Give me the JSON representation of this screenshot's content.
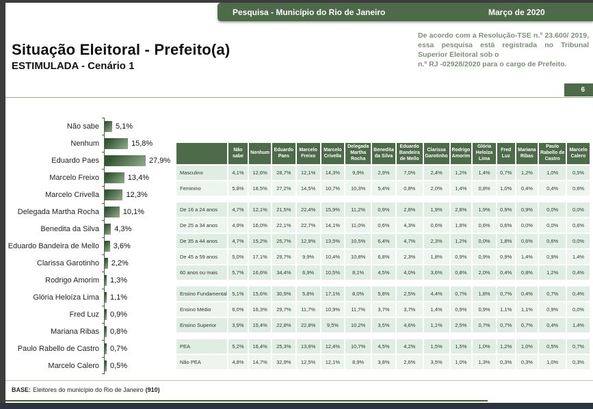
{
  "header": {
    "bar_title": "Pesquisa - Município do Rio de Janeiro",
    "bar_date": "Março de 2020",
    "registration_line1": "De acordo com a Resolução-TSE n.º 23.600/ 2019, essa pesquisa está registrada no Tribunal Superior Eleitoral sob o",
    "registration_line2": "n.º RJ -02928/2020 para o cargo de Prefeito.",
    "page_number": "6"
  },
  "title": {
    "main": "Situação Eleitoral - Prefeito(a)",
    "subtitle": "ESTIMULADA - Cenário 1"
  },
  "chart_data": {
    "type": "bar",
    "orientation": "horizontal",
    "unit": "%",
    "xlim": [
      0,
      30
    ],
    "categories": [
      "Não sabe",
      "Nenhum",
      "Eduardo Paes",
      "Marcelo Freixo",
      "Marcelo Crivella",
      "Delegada Martha Rocha",
      "Benedita da Silva",
      "Eduardo Bandeira de Mello",
      "Clarissa Garotinho",
      "Rodrigo Amorim",
      "Glória Heloíza Lima",
      "Fred Luz",
      "Mariana Ribas",
      "Paulo Rabello de Castro",
      "Marcelo Calero"
    ],
    "values": [
      5.1,
      15.8,
      27.9,
      13.4,
      12.3,
      10.1,
      4.3,
      3.6,
      2.2,
      1.3,
      1.1,
      0.9,
      0.8,
      0.7,
      0.5
    ],
    "value_labels": [
      "5,1%",
      "15,8%",
      "27,9%",
      "13,4%",
      "12,3%",
      "10,1%",
      "4,3%",
      "3,6%",
      "2,2%",
      "1,3%",
      "1,1%",
      "0,9%",
      "0,8%",
      "0,7%",
      "0,5%"
    ]
  },
  "table": {
    "columns": [
      "Não sabe",
      "Nenhum",
      "Eduardo Paes",
      "Marcelo Freixo",
      "Marcelo Crivella",
      "Delegada Martha Rocha",
      "Benedita da Silva",
      "Eduardo Bandeira de Mello",
      "Clarissa Garotinho",
      "Rodrigo Amorim",
      "Glória Heloíza Lima",
      "Fred Luz",
      "Mariana Ribas",
      "Paulo Rabello de Castro",
      "Marcelo Calero"
    ],
    "groups": [
      {
        "rows": [
          {
            "label": "Masculino",
            "values": [
              "4,1%",
              "12,6%",
              "28,7%",
              "12,1%",
              "14,3%",
              "9,9%",
              "2,9%",
              "7,0%",
              "2,4%",
              "1,2%",
              "1,4%",
              "0,7%",
              "1,2%",
              "1,0%",
              "0,5%"
            ]
          },
          {
            "label": "Feminino",
            "values": [
              "5,8%",
              "18,5%",
              "27,2%",
              "14,5%",
              "10,7%",
              "10,3%",
              "5,4%",
              "0,8%",
              "2,0%",
              "1,4%",
              "0,8%",
              "1,0%",
              "0,4%",
              "0,4%",
              "0,6%"
            ]
          }
        ]
      },
      {
        "rows": [
          {
            "label": "De 16 a 24 anos",
            "values": [
              "4,7%",
              "12,1%",
              "21,5%",
              "22,4%",
              "15,9%",
              "11,2%",
              "0,9%",
              "2,8%",
              "1,9%",
              "2,8%",
              "1,9%",
              "0,9%",
              "0,9%",
              "0,0%",
              "0,0%"
            ]
          },
          {
            "label": "De 25 a 34 anos",
            "values": [
              "4,9%",
              "16,0%",
              "22,1%",
              "22,7%",
              "14,1%",
              "11,0%",
              "0,6%",
              "4,3%",
              "0,6%",
              "1,8%",
              "0,6%",
              "0,6%",
              "0,0%",
              "0,0%",
              "0,6%"
            ]
          },
          {
            "label": "De 35 a 44 anos",
            "values": [
              "4,7%",
              "15,2%",
              "25,7%",
              "12,9%",
              "13,5%",
              "10,5%",
              "6,4%",
              "4,7%",
              "2,3%",
              "1,2%",
              "0,0%",
              "1,8%",
              "0,6%",
              "0,6%",
              "0,0%"
            ]
          },
          {
            "label": "De 45 a 59 anos",
            "values": [
              "5,0%",
              "17,1%",
              "29,7%",
              "9,9%",
              "10,4%",
              "10,8%",
              "6,8%",
              "2,3%",
              "1,8%",
              "0,9%",
              "0,9%",
              "0,9%",
              "1,4%",
              "0,9%",
              "1,4%"
            ]
          },
          {
            "label": "60 anos ou mais",
            "values": [
              "5,7%",
              "16,6%",
              "34,4%",
              "6,9%",
              "10,5%",
              "8,1%",
              "4,5%",
              "4,0%",
              "3,6%",
              "0,8%",
              "2,0%",
              "0,4%",
              "0,8%",
              "1,2%",
              "0,4%"
            ]
          }
        ]
      },
      {
        "rows": [
          {
            "label": "Ensino Fundamental",
            "values": [
              "5,1%",
              "15,6%",
              "30,9%",
              "5,8%",
              "17,1%",
              "8,0%",
              "5,8%",
              "2,5%",
              "4,4%",
              "0,7%",
              "1,8%",
              "0,7%",
              "0,4%",
              "0,7%",
              "0,4%"
            ]
          },
          {
            "label": "Ensino Médio",
            "values": [
              "6,0%",
              "16,3%",
              "29,7%",
              "11,7%",
              "10,9%",
              "11,7%",
              "3,7%",
              "3,7%",
              "1,4%",
              "0,9%",
              "0,9%",
              "1,1%",
              "1,1%",
              "0,9%",
              "0,0%"
            ]
          },
          {
            "label": "Ensino Superior",
            "values": [
              "3,9%",
              "15,4%",
              "22,8%",
              "22,8%",
              "9,5%",
              "10,2%",
              "3,5%",
              "4,6%",
              "1,1%",
              "2,5%",
              "0,7%",
              "0,7%",
              "0,7%",
              "0,4%",
              "1,4%"
            ]
          }
        ]
      },
      {
        "rows": [
          {
            "label": "PEA",
            "values": [
              "5,2%",
              "16,4%",
              "25,3%",
              "13,9%",
              "12,4%",
              "10,7%",
              "4,5%",
              "4,2%",
              "1,5%",
              "1,5%",
              "1,0%",
              "1,2%",
              "1,0%",
              "0,5%",
              "0,7%"
            ]
          },
          {
            "label": "Não PEA",
            "values": [
              "4,8%",
              "14,7%",
              "32,9%",
              "12,5%",
              "12,1%",
              "8,9%",
              "3,8%",
              "2,6%",
              "3,5%",
              "1,0%",
              "1,3%",
              "0,3%",
              "0,3%",
              "1,0%",
              "0,3%"
            ]
          }
        ]
      }
    ]
  },
  "footer": {
    "base_label": "BASE:",
    "base_text": "Eleitores do município do Rio de Janeiro",
    "base_count": "(910)"
  },
  "colors": {
    "accent_green": "#4d6a49",
    "table_row_dark": "#dfede3",
    "table_row_light": "#edf5ef",
    "bar_gradient_start": "#2f5430",
    "bar_gradient_end": "#93ad8c",
    "bottom_line_green": "#3c661c",
    "footer_bar": "#2c3440",
    "registration_text": "#7c9078"
  }
}
